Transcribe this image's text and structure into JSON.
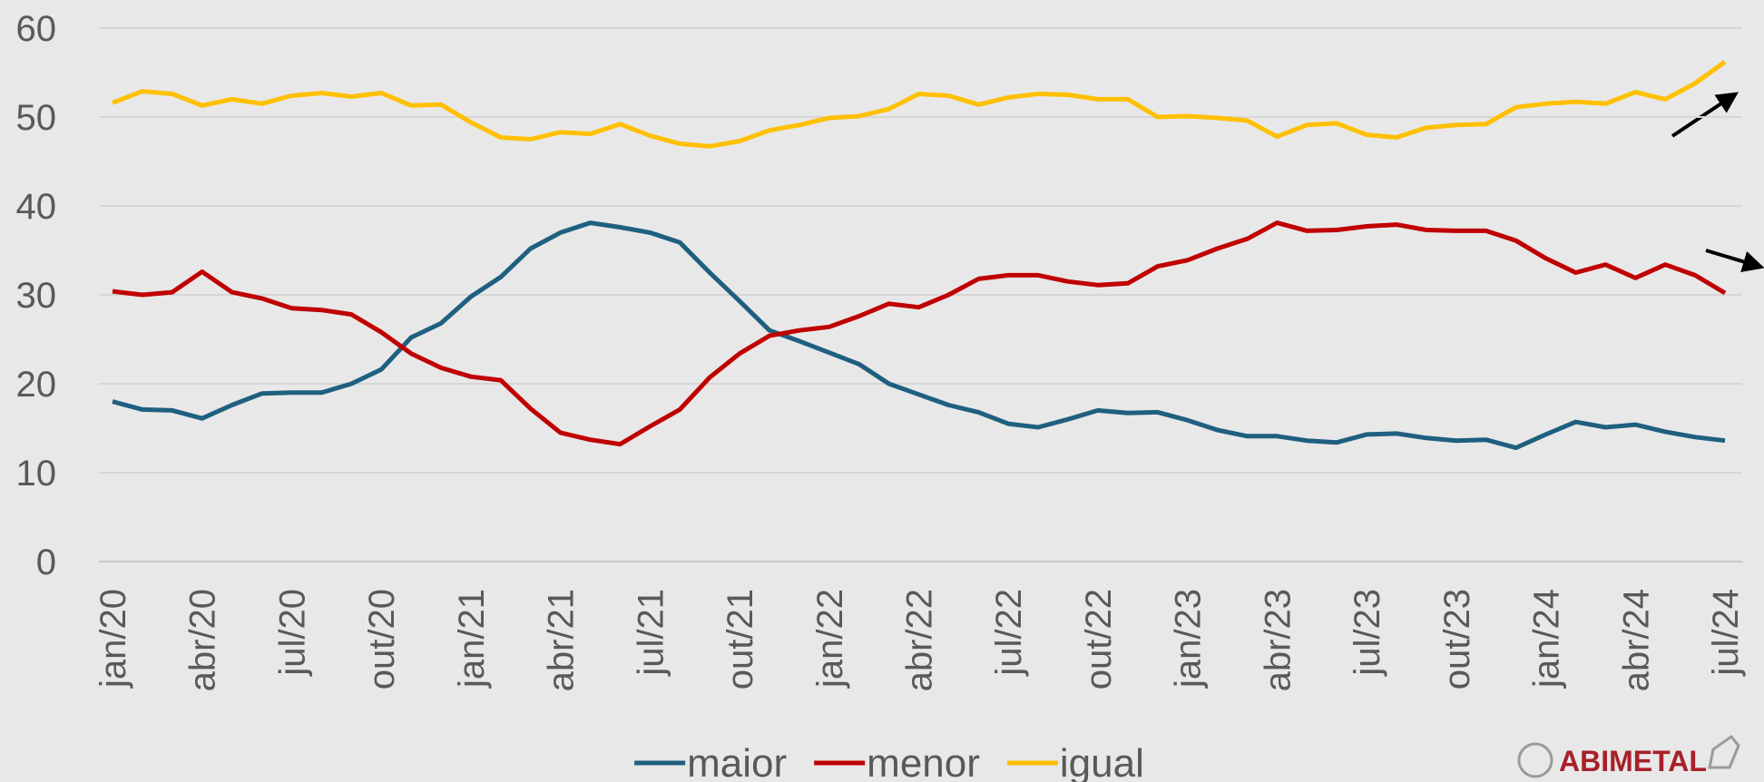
{
  "chart_data": {
    "type": "line",
    "categories": [
      "jan/20",
      null,
      null,
      "abr/20",
      null,
      null,
      "jul/20",
      null,
      null,
      "out/20",
      null,
      null,
      "jan/21",
      null,
      null,
      "abr/21",
      null,
      null,
      "jul/21",
      null,
      null,
      "out/21",
      null,
      null,
      "jan/22",
      null,
      null,
      "abr/22",
      null,
      null,
      "jul/22",
      null,
      null,
      "out/22",
      null,
      null,
      "jan/23",
      null,
      null,
      "abr/23",
      null,
      null,
      "jul/23",
      null,
      null,
      "out/23",
      null,
      null,
      "jan/24",
      null,
      null,
      "abr/24",
      null,
      null,
      "jul/24"
    ],
    "series": [
      {
        "name": "maior",
        "color": "#1f5f80",
        "values": [
          18,
          17.1,
          17,
          16.1,
          17.6,
          18.9,
          19,
          19,
          20,
          21.6,
          25.2,
          26.8,
          29.8,
          32,
          35.2,
          37,
          38.1,
          37.6,
          37,
          35.9,
          32.5,
          29.3,
          26,
          24.8,
          23.5,
          22.2,
          20,
          18.8,
          17.6,
          16.8,
          15.5,
          15.1,
          16,
          17,
          16.7,
          16.8,
          15.9,
          14.8,
          14.1,
          14.1,
          13.6,
          13.4,
          14.3,
          14.4,
          13.9,
          13.6,
          13.7,
          12.8,
          14.3,
          15.7,
          15.1,
          15.4,
          14.6,
          14,
          13.6
        ]
      },
      {
        "name": "menor",
        "color": "#c00000",
        "values": [
          30.4,
          30,
          30.3,
          32.6,
          30.3,
          29.6,
          28.5,
          28.3,
          27.8,
          25.8,
          23.4,
          21.8,
          20.8,
          20.4,
          17.2,
          14.5,
          13.7,
          13.2,
          15.2,
          17.1,
          20.7,
          23.4,
          25.4,
          26,
          26.4,
          27.6,
          29,
          28.6,
          30,
          31.8,
          32.2,
          32.2,
          31.5,
          31.1,
          31.3,
          33.2,
          33.9,
          35.2,
          36.3,
          38.1,
          37.2,
          37.3,
          37.7,
          37.9,
          37.3,
          37.2,
          37.2,
          36.1,
          34.1,
          32.5,
          33.4,
          31.9,
          33.4,
          32.2,
          30.2
        ]
      },
      {
        "name": "igual",
        "color": "#ffc000",
        "values": [
          51.6,
          52.9,
          52.6,
          51.3,
          52,
          51.5,
          52.4,
          52.7,
          52.3,
          52.7,
          51.3,
          51.4,
          49.4,
          47.7,
          47.5,
          48.3,
          48.1,
          49.2,
          47.9,
          47,
          46.7,
          47.3,
          48.5,
          49.1,
          49.9,
          50.1,
          50.9,
          52.6,
          52.4,
          51.4,
          52.2,
          52.6,
          52.5,
          52,
          52,
          50,
          50.1,
          49.9,
          49.6,
          47.8,
          49.1,
          49.3,
          48,
          47.7,
          48.8,
          49.1,
          49.2,
          51.1,
          51.5,
          51.7,
          51.5,
          52.8,
          52,
          53.8,
          56.2
        ]
      }
    ],
    "ylim": [
      0,
      60
    ],
    "yticks": [
      0,
      10,
      20,
      30,
      40,
      50,
      60
    ],
    "grid": true,
    "legend": "bottom",
    "brand": "ABIMETAL"
  }
}
